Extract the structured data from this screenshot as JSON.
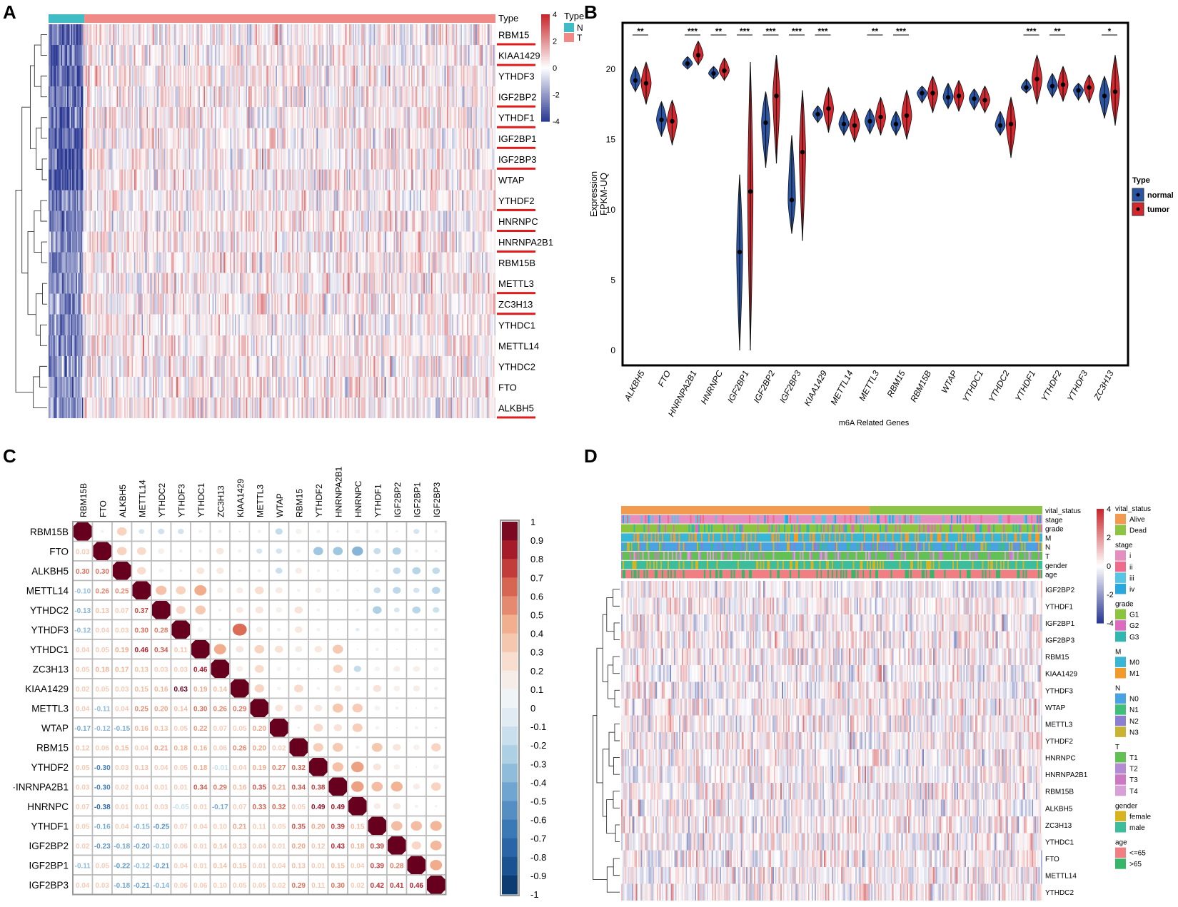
{
  "panel_letters": [
    "A",
    "B",
    "C",
    "D"
  ],
  "colors": {
    "low": "#2c3a94",
    "mid": "#ffffff",
    "high": "#c8282d",
    "type_n": "#3fbcc4",
    "type_t": "#f08a86",
    "normal": "#2a55a6",
    "tumor": "#d6262e",
    "underline": "#e01b1b"
  },
  "chart_data": [
    {
      "panel": "A",
      "type": "heatmap",
      "rows": [
        "RBM15",
        "KIAA1429",
        "YTHDF3",
        "IGF2BP2",
        "YTHDF1",
        "IGF2BP1",
        "IGF2BP3",
        "WTAP",
        "YTHDF2",
        "HNRNPC",
        "HNRNPA2B1",
        "RBM15B",
        "METTL3",
        "ZC3H13",
        "YTHDC1",
        "METTL14",
        "YTHDC2",
        "FTO",
        "ALKBH5"
      ],
      "underlined": [
        "RBM15",
        "KIAA1429",
        "IGF2BP2",
        "YTHDF1",
        "IGF2BP1",
        "IGF2BP3",
        "YTHDF2",
        "HNRNPC",
        "HNRNPA2B1",
        "METTL3",
        "ZC3H13",
        "ALKBH5"
      ],
      "annotation_label": "Type",
      "legend": {
        "title": "Type",
        "entries": [
          {
            "name": "N",
            "color": "#3fbcc4"
          },
          {
            "name": "T",
            "color": "#f08a86"
          }
        ]
      },
      "colorbar_ticks": [
        "4",
        "2",
        "0",
        "-2",
        "-4"
      ],
      "scale_range": [
        -4,
        4
      ],
      "normal_fraction": 0.08
    },
    {
      "panel": "B",
      "type": "violin",
      "title": "",
      "xlabel": "m6A Related Genes",
      "ylabel_lines": [
        "Expression",
        "FPKM-UQ"
      ],
      "ylim": [
        0,
        23
      ],
      "yticks": [
        "0",
        "5",
        "10",
        "15",
        "20"
      ],
      "categories": [
        "ALKBH5",
        "FTO",
        "HNRNPA2B1",
        "HNRNPC",
        "IGF2BP1",
        "IGF2BP2",
        "IGF2BP3",
        "KIAA1429",
        "METTL14",
        "METTL3",
        "RBM15",
        "RBM15B",
        "WTAP",
        "YTHDC1",
        "YTHDC2",
        "YTHDF1",
        "YTHDF2",
        "YTHDF3",
        "ZC3H13"
      ],
      "significance": [
        "**",
        "",
        "***",
        "**",
        "***",
        "***",
        "***",
        "***",
        "",
        "**",
        "***",
        "",
        "",
        "",
        "",
        "***",
        "**",
        "",
        "*"
      ],
      "series": [
        {
          "name": "normal",
          "medians": [
            19.2,
            16.4,
            20.4,
            19.7,
            7.0,
            16.2,
            10.7,
            16.8,
            16.1,
            16.3,
            16.1,
            18.3,
            18.0,
            17.9,
            16.0,
            18.7,
            18.8,
            18.5,
            18.1
          ],
          "ranges": [
            [
              18.4,
              20.2
            ],
            [
              15.2,
              17.7
            ],
            [
              20.0,
              20.9
            ],
            [
              19.3,
              20.2
            ],
            [
              0,
              12.5
            ],
            [
              13,
              18.4
            ],
            [
              8.3,
              15.3
            ],
            [
              16.2,
              17.4
            ],
            [
              15.3,
              17.0
            ],
            [
              15.4,
              17.2
            ],
            [
              15.3,
              17.0
            ],
            [
              17.6,
              18.8
            ],
            [
              17.2,
              19.0
            ],
            [
              17.1,
              18.6
            ],
            [
              15.3,
              17.0
            ],
            [
              18.3,
              19.3
            ],
            [
              18.0,
              19.7
            ],
            [
              17.8,
              19.0
            ],
            [
              16.5,
              19.5
            ]
          ]
        },
        {
          "name": "tumor",
          "medians": [
            19.0,
            16.3,
            21.0,
            19.9,
            11.3,
            18.1,
            14.1,
            17.2,
            16.0,
            16.6,
            16.7,
            18.3,
            18.1,
            17.8,
            16.1,
            19.3,
            18.9,
            18.7,
            18.4
          ],
          "ranges": [
            [
              17.5,
              20.5
            ],
            [
              14.6,
              17.8
            ],
            [
              20.3,
              22.0
            ],
            [
              19.2,
              20.8
            ],
            [
              0,
              20.5
            ],
            [
              13.3,
              21.0
            ],
            [
              7.8,
              18.5
            ],
            [
              15.5,
              18.7
            ],
            [
              14.8,
              17.2
            ],
            [
              15.3,
              18.0
            ],
            [
              15.0,
              18.5
            ],
            [
              16.9,
              19.5
            ],
            [
              17.0,
              19.2
            ],
            [
              16.9,
              18.8
            ],
            [
              13.7,
              18.0
            ],
            [
              17.5,
              21.0
            ],
            [
              17.7,
              20.2
            ],
            [
              17.6,
              19.6
            ],
            [
              16.0,
              21.0
            ]
          ]
        }
      ],
      "legend": {
        "title": "Type",
        "entries": [
          "normal",
          "tumor"
        ]
      }
    },
    {
      "panel": "C",
      "type": "correlation_matrix",
      "genes": [
        "RBM15B",
        "FTO",
        "ALKBH5",
        "METTL14",
        "YTHDC2",
        "YTHDF3",
        "YTHDC1",
        "ZC3H13",
        "KIAA1429",
        "METTL3",
        "WTAP",
        "RBM15",
        "YTHDF2",
        "HNRNPA2B1",
        "HNRNPC",
        "YTHDF1",
        "IGF2BP2",
        "IGF2BP1",
        "IGF2BP3"
      ],
      "row_display_labels": [
        "RBM15B",
        "FTO",
        "ALKBH5",
        "METTL14",
        "YTHDC2",
        "YTHDF3",
        "YTHDC1",
        "ZC3H13",
        "KIAA1429",
        "METTL3",
        "WTAP",
        "RBM15",
        "YTHDF2",
        "·INRNPA2B1",
        "HNRNPC",
        "YTHDF1",
        "IGF2BP2",
        "IGF2BP1",
        "IGF2BP3"
      ],
      "lower_triangle": [
        [],
        [
          0.03
        ],
        [
          0.3,
          0.3
        ],
        [
          -0.1,
          0.26,
          0.25
        ],
        [
          -0.13,
          0.13,
          0.07,
          0.37
        ],
        [
          -0.12,
          0.04,
          0.03,
          0.3,
          0.28
        ],
        [
          0.04,
          0.05,
          0.19,
          0.46,
          0.34,
          0.11
        ],
        [
          0.05,
          0.18,
          0.17,
          0.13,
          0.03,
          0.03,
          0.46
        ],
        [
          0.02,
          0.05,
          0.03,
          0.15,
          0.16,
          0.63,
          0.19,
          0.14
        ],
        [
          0.04,
          -0.11,
          0.04,
          0.25,
          0.2,
          0.14,
          0.3,
          0.26,
          0.29
        ],
        [
          -0.17,
          -0.12,
          -0.15,
          0.16,
          0.13,
          0.05,
          0.22,
          0.07,
          0.05,
          0.2
        ],
        [
          0.12,
          0.06,
          0.15,
          0.04,
          0.21,
          0.18,
          0.16,
          0.06,
          0.26,
          0.2,
          0.02
        ],
        [
          0.05,
          -0.3,
          0.03,
          0.13,
          0.04,
          0.05,
          0.18,
          -0.01,
          0.04,
          0.19,
          0.27,
          0.32
        ],
        [
          0.03,
          -0.3,
          0.02,
          0.04,
          0.01,
          0.01,
          0.34,
          0.29,
          0.16,
          0.35,
          0.21,
          0.34,
          0.38
        ],
        [
          0.07,
          -0.38,
          0.01,
          0.01,
          0.03,
          -0.05,
          0.01,
          -0.17,
          0.07,
          0.33,
          0.32,
          0.05,
          0.49,
          0.49
        ],
        [
          0.05,
          -0.16,
          0.04,
          -0.15,
          -0.25,
          0.07,
          0.04,
          0.1,
          0.21,
          0.11,
          0.05,
          0.35,
          0.2,
          0.39,
          0.15
        ],
        [
          0.02,
          -0.23,
          -0.18,
          -0.2,
          -0.1,
          0.06,
          0.01,
          0.14,
          0.13,
          0.04,
          0.01,
          0.2,
          0.12,
          0.43,
          0.18,
          0.39
        ],
        [
          -0.11,
          0.05,
          -0.22,
          -0.12,
          -0.21,
          0.04,
          0.01,
          0.14,
          0.15,
          0.01,
          0.04,
          0.13,
          0.01,
          0.15,
          0.04,
          0.39,
          0.28
        ],
        [
          0.04,
          0.03,
          -0.18,
          -0.21,
          -0.14,
          0.06,
          0.06,
          0.1,
          0.05,
          0.05,
          0.02,
          0.29,
          0.11,
          0.3,
          0.02,
          0.42,
          0.41,
          0.46
        ]
      ],
      "colorbar_ticks": [
        "1",
        "0.9",
        "0.8",
        "0.7",
        "0.6",
        "0.5",
        "0.4",
        "0.3",
        "0.2",
        "0.1",
        "0",
        "-0.1",
        "-0.2",
        "-0.3",
        "-0.4",
        "-0.5",
        "-0.6",
        "-0.7",
        "-0.8",
        "-0.9",
        "-1"
      ]
    },
    {
      "panel": "D",
      "type": "heatmap",
      "rows": [
        "IGF2BP2",
        "YTHDF1",
        "IGF2BP1",
        "IGF2BP3",
        "RBM15",
        "KIAA1429",
        "YTHDF3",
        "WTAP",
        "METTL3",
        "YTHDF2",
        "HNRNPC",
        "HNRNPA2B1",
        "RBM15B",
        "ALKBH5",
        "ZC3H13",
        "YTHDC1",
        "FTO",
        "METTL14",
        "YTHDC2"
      ],
      "annotation_tracks": [
        "vital_status",
        "stage",
        "grade",
        "M",
        "N",
        "T",
        "gender",
        "age"
      ],
      "colorbar_ticks": [
        "4",
        "2",
        "0",
        "-2",
        "-4"
      ],
      "scale_range": [
        -4,
        4
      ],
      "alive_fraction": 0.59,
      "legends": [
        {
          "title": "vital_status",
          "entries": [
            {
              "name": "Alive",
              "color": "#f29a4f"
            },
            {
              "name": "Dead",
              "color": "#8dc445"
            }
          ]
        },
        {
          "title": "stage",
          "entries": [
            {
              "name": "i",
              "color": "#e48fc0"
            },
            {
              "name": "ii",
              "color": "#f06a8e"
            },
            {
              "name": "iii",
              "color": "#57c6e6"
            },
            {
              "name": "iv",
              "color": "#2aa7dd"
            }
          ]
        },
        {
          "title": "grade",
          "entries": [
            {
              "name": "G1",
              "color": "#8dc43f"
            },
            {
              "name": "G2",
              "color": "#dc6bbf"
            },
            {
              "name": "G3",
              "color": "#31b7b0"
            }
          ]
        },
        {
          "title": "M",
          "entries": [
            {
              "name": "M0",
              "color": "#38b6d4"
            },
            {
              "name": "M1",
              "color": "#f39b2a"
            }
          ]
        },
        {
          "title": "N",
          "entries": [
            {
              "name": "N0",
              "color": "#4aa3e0"
            },
            {
              "name": "N1",
              "color": "#3fbf7a"
            },
            {
              "name": "N2",
              "color": "#8c7fd0"
            },
            {
              "name": "N3",
              "color": "#c8b432"
            }
          ]
        },
        {
          "title": "T",
          "entries": [
            {
              "name": "T1",
              "color": "#62c055"
            },
            {
              "name": "T2",
              "color": "#b38bd3"
            },
            {
              "name": "T3",
              "color": "#cc78c2"
            },
            {
              "name": "T4",
              "color": "#d8a0d6"
            }
          ]
        },
        {
          "title": "gender",
          "entries": [
            {
              "name": "female",
              "color": "#d6b31f"
            },
            {
              "name": "male",
              "color": "#3dbd9c"
            }
          ]
        },
        {
          "title": "age",
          "entries": [
            {
              "name": "<=65",
              "color": "#f07e83"
            },
            {
              "name": ">65",
              "color": "#35b66b"
            }
          ]
        }
      ]
    }
  ]
}
